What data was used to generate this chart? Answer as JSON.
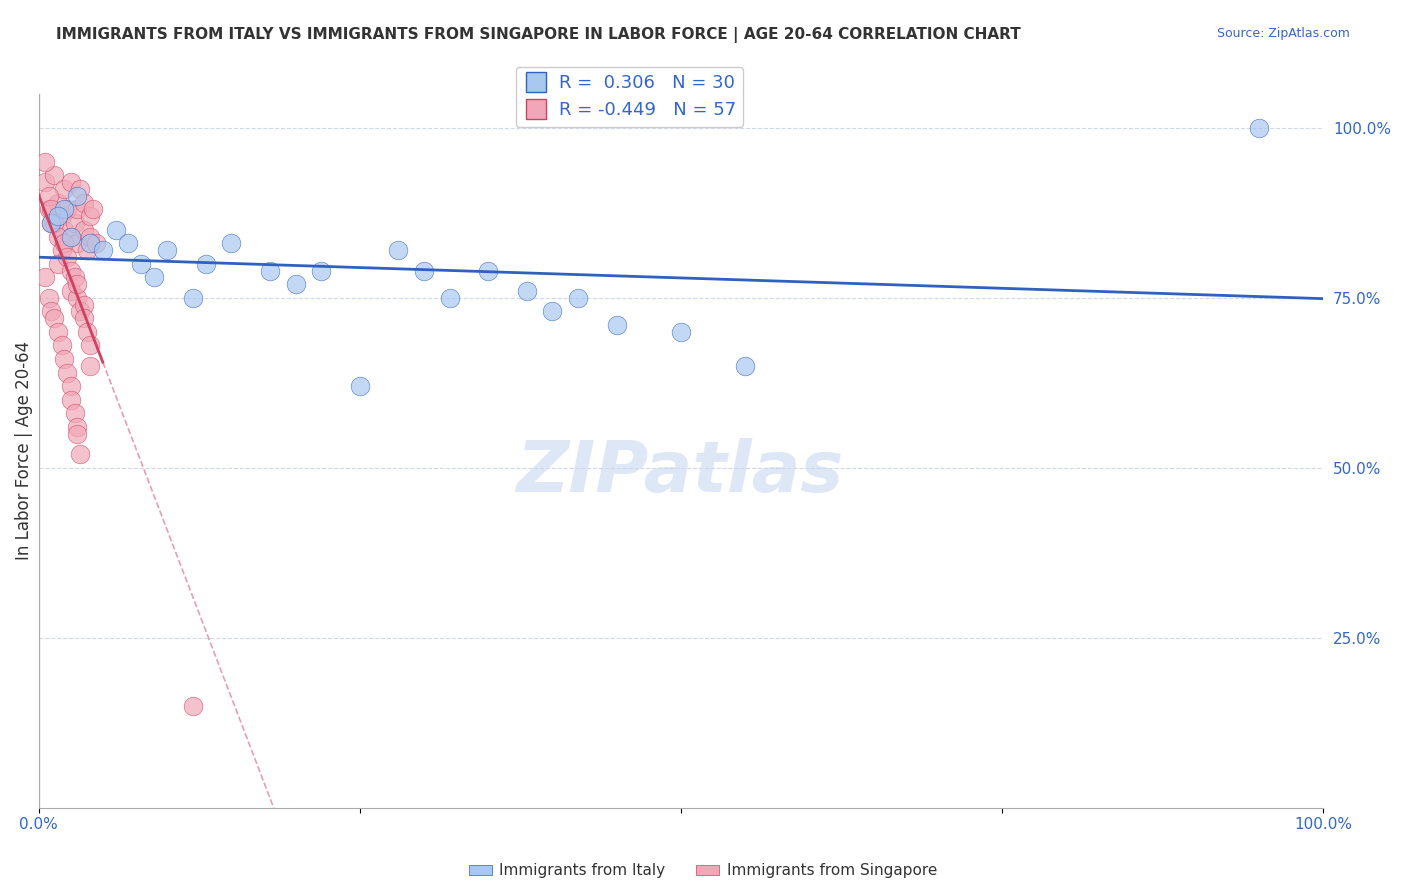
{
  "title": "IMMIGRANTS FROM ITALY VS IMMIGRANTS FROM SINGAPORE IN LABOR FORCE | AGE 20-64 CORRELATION CHART",
  "source": "Source: ZipAtlas.com",
  "xlabel": "",
  "ylabel": "In Labor Force | Age 20-64",
  "xlim": [
    0.0,
    1.0
  ],
  "ylim": [
    0.0,
    1.05
  ],
  "xticks": [
    0.0,
    0.25,
    0.5,
    0.75,
    1.0
  ],
  "xticklabels": [
    "0.0%",
    "",
    "",
    "",
    "100.0%"
  ],
  "yticks_right": [
    0.25,
    0.5,
    0.75,
    1.0
  ],
  "ytick_labels_right": [
    "25.0%",
    "50.0%",
    "75.0%",
    "100.0%"
  ],
  "R_italy": 0.306,
  "N_italy": 30,
  "R_singapore": -0.449,
  "N_singapore": 57,
  "italy_color": "#a8c8f0",
  "italy_line_color": "#3060c0",
  "singapore_color": "#f0a8b8",
  "singapore_line_color": "#d04060",
  "italy_scatter_x": [
    0.02,
    0.03,
    0.01,
    0.015,
    0.025,
    0.04,
    0.05,
    0.06,
    0.07,
    0.08,
    0.09,
    0.1,
    0.12,
    0.13,
    0.18,
    0.2,
    0.15,
    0.22,
    0.25,
    0.3,
    0.32,
    0.28,
    0.35,
    0.38,
    0.4,
    0.42,
    0.45,
    0.5,
    0.55,
    0.95
  ],
  "italy_scatter_y": [
    0.88,
    0.9,
    0.86,
    0.87,
    0.84,
    0.83,
    0.82,
    0.85,
    0.83,
    0.8,
    0.78,
    0.82,
    0.75,
    0.8,
    0.79,
    0.77,
    0.83,
    0.79,
    0.62,
    0.79,
    0.75,
    0.82,
    0.79,
    0.76,
    0.73,
    0.75,
    0.71,
    0.7,
    0.65,
    1.0
  ],
  "singapore_scatter_x": [
    0.005,
    0.008,
    0.01,
    0.012,
    0.015,
    0.018,
    0.02,
    0.02,
    0.022,
    0.025,
    0.025,
    0.028,
    0.03,
    0.03,
    0.032,
    0.035,
    0.035,
    0.038,
    0.04,
    0.04,
    0.042,
    0.045,
    0.005,
    0.008,
    0.01,
    0.012,
    0.015,
    0.018,
    0.015,
    0.02,
    0.022,
    0.025,
    0.025,
    0.028,
    0.03,
    0.03,
    0.032,
    0.035,
    0.035,
    0.038,
    0.04,
    0.005,
    0.008,
    0.01,
    0.012,
    0.015,
    0.018,
    0.02,
    0.022,
    0.025,
    0.025,
    0.028,
    0.03,
    0.03,
    0.032,
    0.04,
    0.12
  ],
  "singapore_scatter_y": [
    0.92,
    0.88,
    0.86,
    0.93,
    0.89,
    0.87,
    0.85,
    0.91,
    0.88,
    0.84,
    0.92,
    0.86,
    0.88,
    0.83,
    0.91,
    0.85,
    0.89,
    0.82,
    0.87,
    0.84,
    0.88,
    0.83,
    0.95,
    0.9,
    0.88,
    0.86,
    0.84,
    0.82,
    0.8,
    0.83,
    0.81,
    0.79,
    0.76,
    0.78,
    0.75,
    0.77,
    0.73,
    0.74,
    0.72,
    0.7,
    0.68,
    0.78,
    0.75,
    0.73,
    0.72,
    0.7,
    0.68,
    0.66,
    0.64,
    0.62,
    0.6,
    0.58,
    0.56,
    0.55,
    0.52,
    0.65,
    0.15
  ],
  "grid_color": "#d0d8e8",
  "background_color": "#ffffff",
  "watermark": "ZIPatlas",
  "watermark_color": "#c8d8f0"
}
